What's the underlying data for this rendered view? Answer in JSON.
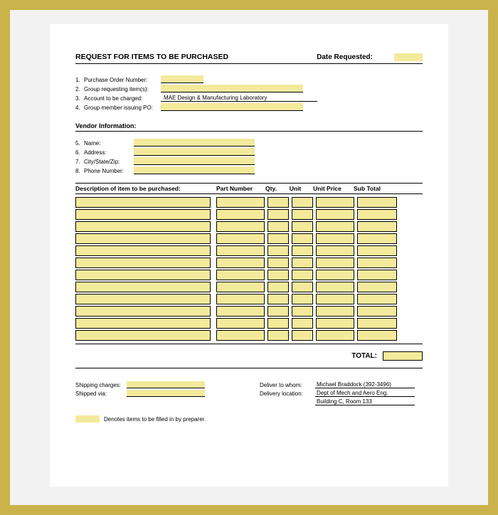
{
  "colors": {
    "frame_border": "#c9b34a",
    "page_bg": "#ffffff",
    "outer_bg": "#f2f2f2",
    "fill": "#f3ea9b",
    "line": "#000000"
  },
  "header": {
    "title": "REQUEST FOR ITEMS TO BE PURCHASED",
    "date_label": "Date Requested:",
    "date_value": ""
  },
  "po_fields": [
    {
      "num": "1.",
      "label": "Purchase Order Number:",
      "value": "",
      "fill": true,
      "width": "w60"
    },
    {
      "num": "2.",
      "label": "Group requesting item(s):",
      "value": "",
      "fill": true,
      "width": "w200"
    },
    {
      "num": "3.",
      "label": "Account to be charged:",
      "value": "MAE Design & Manufacturing Laboratory",
      "fill": false,
      "width": "w220"
    },
    {
      "num": "4.",
      "label": "Group member issuing PO:",
      "value": "",
      "fill": true,
      "width": "w200"
    }
  ],
  "vendor_heading": "Vendor Information:",
  "vendor_fields": [
    {
      "num": "5.",
      "label": "Name:",
      "value": "",
      "fill": true
    },
    {
      "num": "6.",
      "label": "Address:",
      "value": "",
      "fill": true
    },
    {
      "num": "7.",
      "label": "City/State/Zip:",
      "value": "",
      "fill": true
    },
    {
      "num": "8.",
      "label": "Phone Number:",
      "value": "",
      "fill": true
    }
  ],
  "table": {
    "headers": {
      "description": "Description of item to be purchased:",
      "part": "Part Number",
      "qty": "Qty.",
      "unit": "Unit",
      "price": "Unit Price",
      "sub": "Sub Total"
    },
    "row_count": 12,
    "total_label": "TOTAL:",
    "total_value": ""
  },
  "footer": {
    "left": [
      {
        "label": "Shipping charges:",
        "value": "",
        "fill": true
      },
      {
        "label": "Shipped via:",
        "value": "",
        "fill": true
      }
    ],
    "right": [
      {
        "label": "Deliver to whom:",
        "value": "Michael Braddock (392-3496)"
      },
      {
        "label": "Delivery location:",
        "value": "Dept of Mech and Aero Eng."
      },
      {
        "label": "",
        "value": "Building C, Room 133"
      }
    ]
  },
  "legend": "Denotes items to be filled in by preparer."
}
